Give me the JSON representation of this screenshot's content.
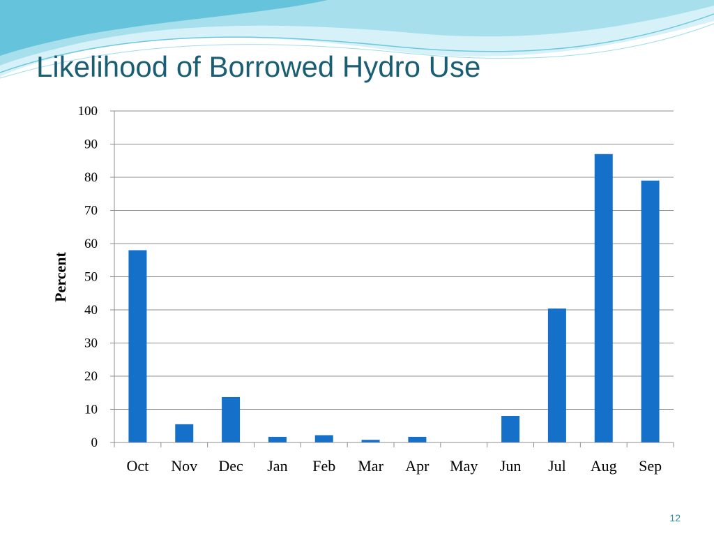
{
  "slide": {
    "title": "Likelihood of Borrowed Hydro Use",
    "page_number": "12"
  },
  "colors": {
    "bar": "#1470c8",
    "title": "#1a5e73",
    "wave_light": "#cdeef5",
    "wave_mid": "#8fd8e8",
    "wave_dark": "#3fb3d0",
    "gridline": "#8c8c8c"
  },
  "chart_data": {
    "type": "bar",
    "title": "",
    "xlabel": "",
    "ylabel": "Percent",
    "categories": [
      "Oct",
      "Nov",
      "Dec",
      "Jan",
      "Feb",
      "Mar",
      "Apr",
      "May",
      "Jun",
      "Jul",
      "Aug",
      "Sep"
    ],
    "values": [
      58,
      5.5,
      13.7,
      1.7,
      2.2,
      0.8,
      1.7,
      0,
      8,
      40.4,
      87,
      79
    ],
    "ylim": [
      0,
      100
    ],
    "yticks": [
      "0",
      "10",
      "20",
      "30",
      "40",
      "50",
      "60",
      "70",
      "80",
      "90",
      "100"
    ],
    "grid": true,
    "legend": "none"
  }
}
